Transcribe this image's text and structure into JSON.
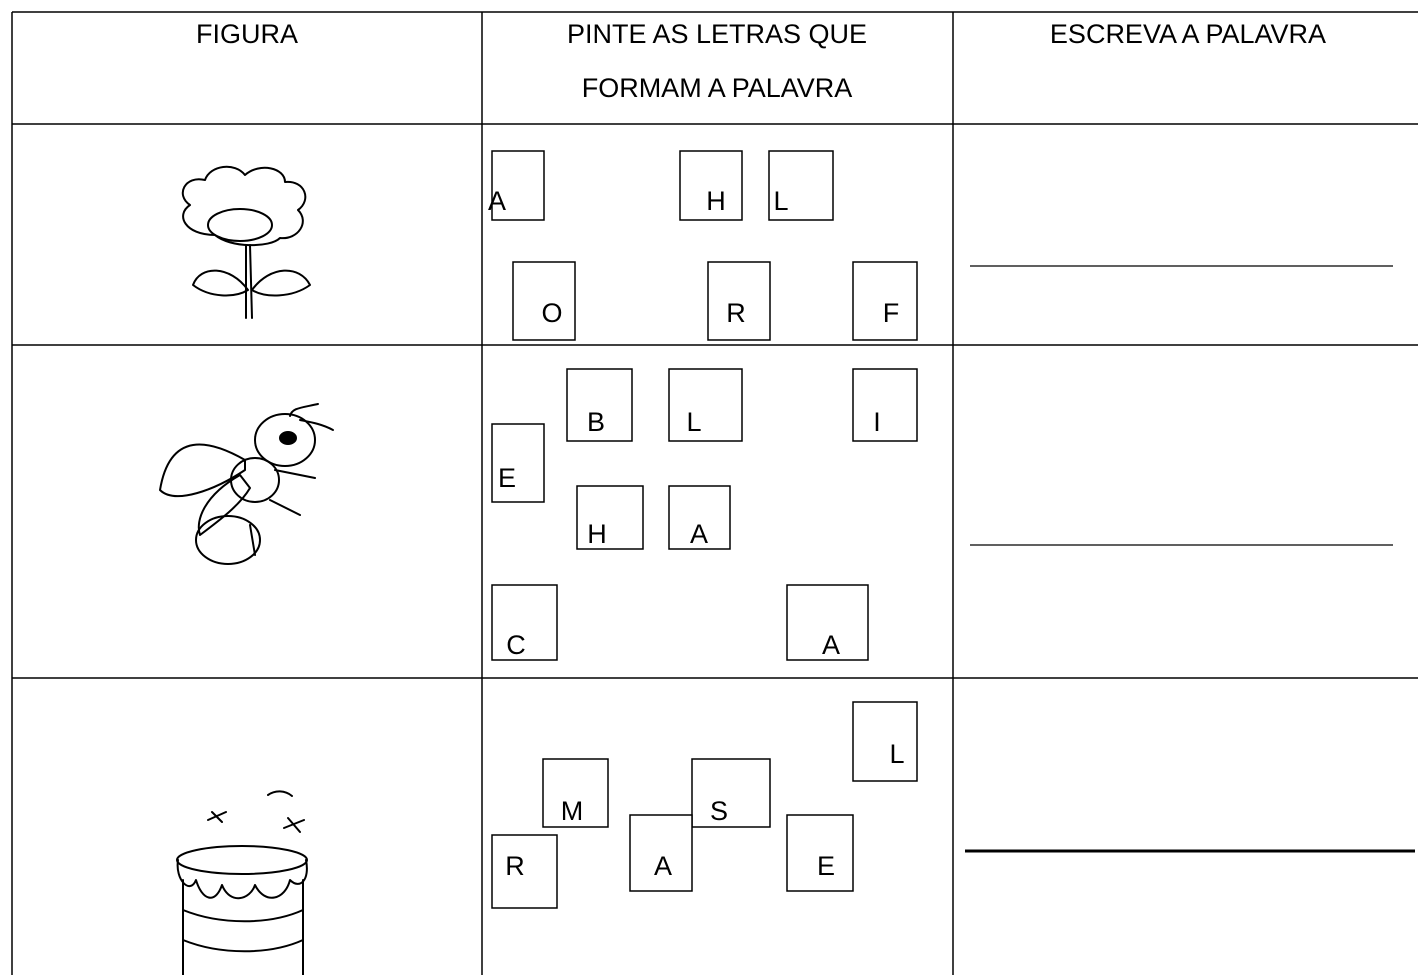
{
  "header": {
    "figure": "FIGURA",
    "letters": [
      "PINTE AS LETRAS QUE",
      "FORMAM A PALAVRA"
    ],
    "write": "ESCREVA A PALAVRA"
  },
  "rows": [
    {
      "letters": [
        "A",
        "H",
        "L",
        "O",
        "R",
        "F"
      ]
    },
    {
      "letters": [
        "B",
        "L",
        "I",
        "E",
        "H",
        "A",
        "C",
        "A"
      ]
    },
    {
      "letters": [
        "L",
        "M",
        "S",
        "R",
        "A",
        "E"
      ]
    }
  ]
}
